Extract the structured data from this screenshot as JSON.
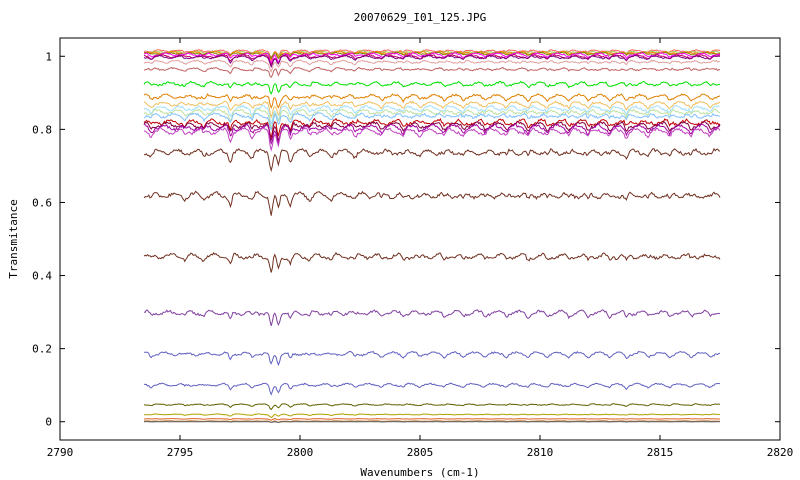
{
  "chart_data": {
    "type": "line",
    "title": "20070629_I01_125.JPG",
    "xlabel": "Wavenumbers (cm-1)",
    "ylabel": "Transmitance",
    "xlim": [
      2790,
      2820
    ],
    "ylim": [
      -0.05,
      1.05
    ],
    "xticks": [
      2790,
      2795,
      2800,
      2805,
      2810,
      2815,
      2820
    ],
    "yticks": [
      0,
      0.2,
      0.4,
      0.6,
      0.8,
      1
    ],
    "yticklabels": [
      "0",
      "0.2",
      "0.4",
      "0.6",
      "0.8",
      "1"
    ],
    "grid": false,
    "legend": "none",
    "x_range": [
      2793.5,
      2817.5
    ],
    "absorption_lines": [
      {
        "x": 2793.8,
        "depth": 0.4
      },
      {
        "x": 2795.2,
        "depth": 0.3
      },
      {
        "x": 2796.0,
        "depth": 0.35
      },
      {
        "x": 2797.1,
        "depth": 0.9
      },
      {
        "x": 2798.0,
        "depth": 0.5
      },
      {
        "x": 2798.8,
        "depth": 1.8
      },
      {
        "x": 2799.1,
        "depth": 1.4
      },
      {
        "x": 2799.6,
        "depth": 0.8
      },
      {
        "x": 2800.4,
        "depth": 0.4
      },
      {
        "x": 2801.3,
        "depth": 0.35
      },
      {
        "x": 2802.3,
        "depth": 0.4
      },
      {
        "x": 2803.4,
        "depth": 0.35
      },
      {
        "x": 2804.3,
        "depth": 0.4
      },
      {
        "x": 2805.0,
        "depth": 0.3
      },
      {
        "x": 2806.0,
        "depth": 0.35
      },
      {
        "x": 2806.8,
        "depth": 0.4
      },
      {
        "x": 2807.7,
        "depth": 0.3
      },
      {
        "x": 2808.6,
        "depth": 0.35
      },
      {
        "x": 2809.5,
        "depth": 0.45
      },
      {
        "x": 2810.3,
        "depth": 0.35
      },
      {
        "x": 2811.2,
        "depth": 0.4
      },
      {
        "x": 2812.0,
        "depth": 0.45
      },
      {
        "x": 2812.9,
        "depth": 0.4
      },
      {
        "x": 2813.6,
        "depth": 0.6
      },
      {
        "x": 2814.5,
        "depth": 0.35
      },
      {
        "x": 2815.4,
        "depth": 0.4
      },
      {
        "x": 2816.3,
        "depth": 0.35
      },
      {
        "x": 2817.1,
        "depth": 0.3
      }
    ],
    "series": [
      {
        "color": "#ff6060",
        "base": 1.015,
        "amp": 0.004
      },
      {
        "color": "#a0d060",
        "base": 1.012,
        "amp": 0.004
      },
      {
        "color": "#ff8000",
        "base": 1.01,
        "amp": 0.005
      },
      {
        "color": "#808000",
        "base": 1.008,
        "amp": 0.004
      },
      {
        "color": "#ff00ff",
        "base": 1.005,
        "amp": 0.006
      },
      {
        "color": "#c00060",
        "base": 1.0,
        "amp": 0.006
      },
      {
        "color": "#800080",
        "base": 0.998,
        "amp": 0.006
      },
      {
        "color": "#e0a0a0",
        "base": 0.985,
        "amp": 0.006
      },
      {
        "color": "#c06060",
        "base": 0.965,
        "amp": 0.006
      },
      {
        "color": "#00e000",
        "base": 0.925,
        "amp": 0.008
      },
      {
        "color": "#e08000",
        "base": 0.89,
        "amp": 0.009
      },
      {
        "color": "#f0c060",
        "base": 0.87,
        "amp": 0.009
      },
      {
        "color": "#a0e0ff",
        "base": 0.858,
        "amp": 0.01
      },
      {
        "color": "#c0e0a0",
        "base": 0.848,
        "amp": 0.01
      },
      {
        "color": "#80c0ff",
        "base": 0.838,
        "amp": 0.01
      },
      {
        "color": "#c00000",
        "base": 0.82,
        "amp": 0.012
      },
      {
        "color": "#800040",
        "base": 0.812,
        "amp": 0.012
      },
      {
        "color": "#a000a0",
        "base": 0.805,
        "amp": 0.012
      },
      {
        "color": "#c040c0",
        "base": 0.795,
        "amp": 0.012
      },
      {
        "color": "#703020",
        "base": 0.738,
        "amp": 0.012
      },
      {
        "color": "#703020",
        "base": 0.62,
        "amp": 0.013
      },
      {
        "color": "#703020",
        "base": 0.453,
        "amp": 0.012
      },
      {
        "color": "#8040a0",
        "base": 0.298,
        "amp": 0.01
      },
      {
        "color": "#6060c0",
        "base": 0.186,
        "amp": 0.008
      },
      {
        "color": "#6060c0",
        "base": 0.101,
        "amp": 0.006
      },
      {
        "color": "#606000",
        "base": 0.047,
        "amp": 0.003
      },
      {
        "color": "#b0a000",
        "base": 0.02,
        "amp": 0.002
      },
      {
        "color": "#e06020",
        "base": 0.008,
        "amp": 0.001
      },
      {
        "color": "#c08040",
        "base": 0.002,
        "amp": 0.001
      },
      {
        "color": "#606060",
        "base": 0.0,
        "amp": 0.0005
      }
    ]
  }
}
